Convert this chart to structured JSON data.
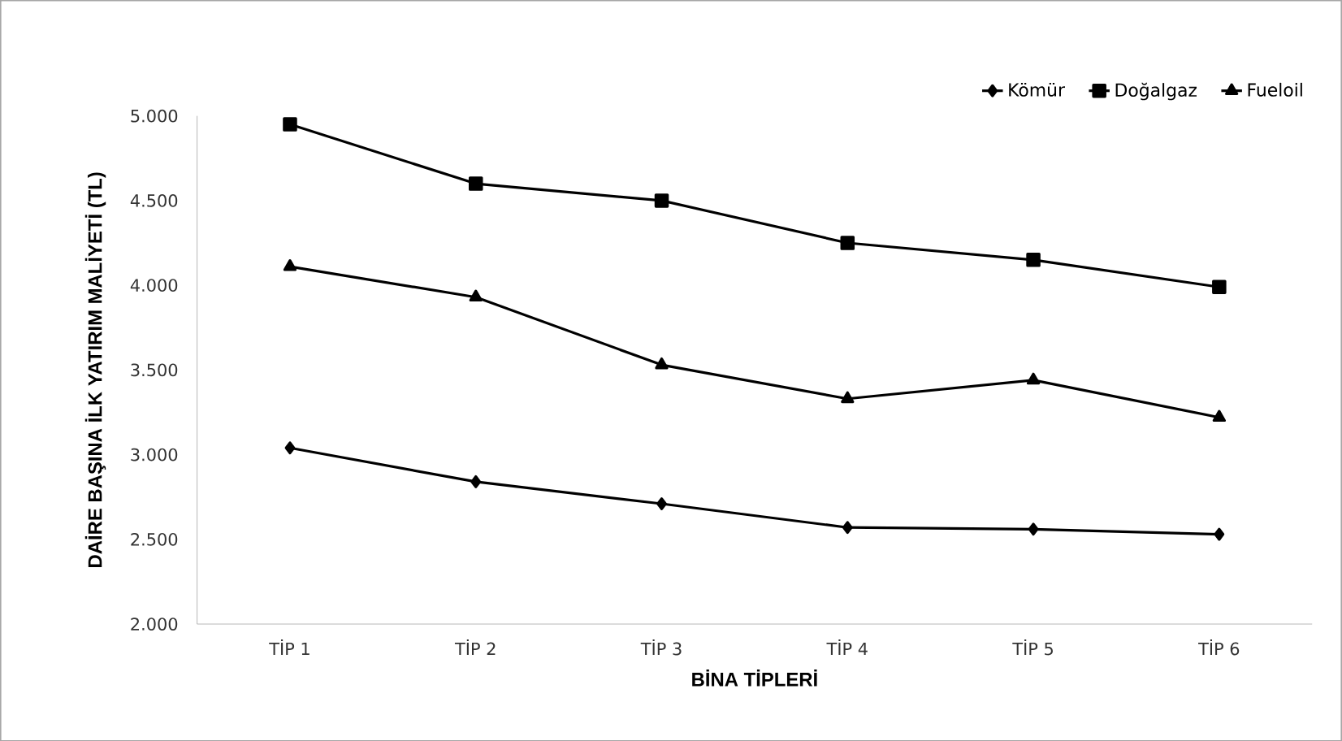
{
  "chart_data": {
    "type": "line",
    "xlabel": "BİNA TİPLERİ",
    "ylabel": "DAİRE BAŞINA İLK YATIRIM MALİYETİ (TL)",
    "categories": [
      "TİP 1",
      "TİP 2",
      "TİP 3",
      "TİP 4",
      "TİP 5",
      "TİP 6"
    ],
    "series": [
      {
        "name": "Kömür",
        "color": "#000000",
        "marker": "diamond",
        "values": [
          3040,
          2840,
          2710,
          2570,
          2560,
          2530
        ]
      },
      {
        "name": "Doğalgaz",
        "color": "#000000",
        "marker": "square",
        "values": [
          4950,
          4600,
          4500,
          4250,
          4150,
          3990
        ]
      },
      {
        "name": "Fueloil",
        "color": "#000000",
        "marker": "triangle",
        "values": [
          4110,
          3930,
          3530,
          3330,
          3440,
          3220
        ]
      }
    ],
    "ylim": [
      2000,
      5000
    ],
    "yticks": [
      {
        "value": 2000,
        "label": "2.000"
      },
      {
        "value": 2500,
        "label": "2.500"
      },
      {
        "value": 3000,
        "label": "3.000"
      },
      {
        "value": 3500,
        "label": "3.500"
      },
      {
        "value": 4000,
        "label": "4.000"
      },
      {
        "value": 4500,
        "label": "4.500"
      },
      {
        "value": 5000,
        "label": "5.000"
      }
    ],
    "grid": false,
    "legend": "top right",
    "line_style": "solid"
  }
}
